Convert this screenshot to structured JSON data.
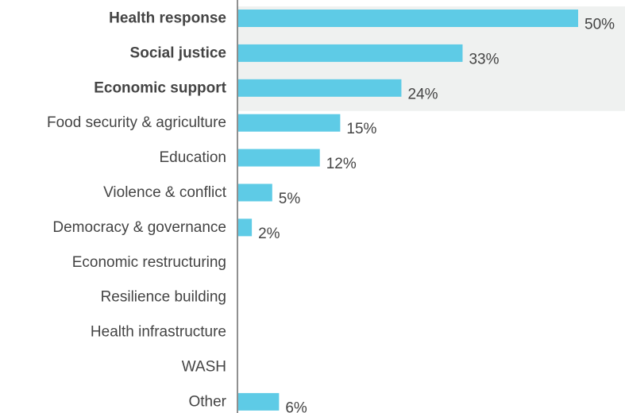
{
  "chart_data": {
    "type": "bar",
    "orientation": "horizontal",
    "categories": [
      "Health response",
      "Social justice",
      "Economic support",
      "Food security & agriculture",
      "Education",
      "Violence & conflict",
      "Democracy & governance",
      "Economic restructuring",
      "Resilience building",
      "Health infrastructure",
      "WASH",
      "Other"
    ],
    "values": [
      50,
      33,
      24,
      15,
      12,
      5,
      2,
      null,
      null,
      null,
      null,
      6
    ],
    "value_labels": [
      "50%",
      "33%",
      "24%",
      "15%",
      "12%",
      "5%",
      "2%",
      "",
      "",
      "",
      "",
      "6%"
    ],
    "highlighted_categories": [
      "Health response",
      "Social justice",
      "Economic support"
    ],
    "xlim": [
      0,
      50
    ],
    "unit": "%",
    "grid": false,
    "legend": "none",
    "title": "",
    "xlabel": "",
    "ylabel": ""
  },
  "colors": {
    "bar": "#5ecbe6",
    "highlight_band": "#eff1f0",
    "axis": "#555555",
    "text": "#444444"
  }
}
